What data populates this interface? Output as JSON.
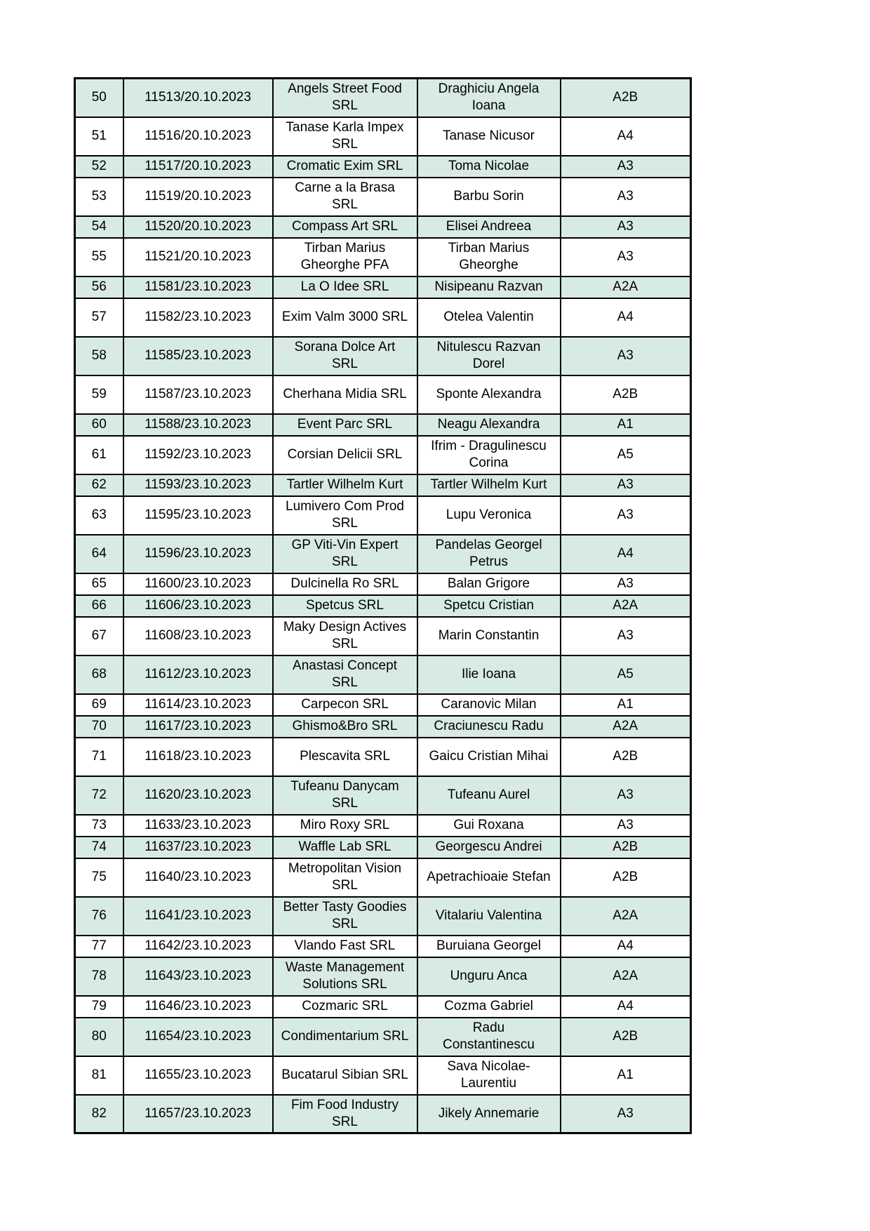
{
  "table": {
    "border_color": "#000000",
    "plain_fill": "#ffffff",
    "shaded_fill": "#d8ebe3",
    "column_names": [
      "cell-row-number",
      "cell-registration-number",
      "cell-company-name",
      "cell-representative-name",
      "cell-category-code"
    ],
    "rows": [
      {
        "no": "50",
        "reg": "11513/20.10.2023",
        "company": "Angels Street Food\nSRL",
        "person": "Draghiciu Angela\nIoana",
        "code": "A2B",
        "tall": true
      },
      {
        "no": "51",
        "reg": "11516/20.10.2023",
        "company": "Tanase Karla Impex\nSRL",
        "person": "Tanase Nicusor",
        "code": "A4",
        "tall": true
      },
      {
        "no": "52",
        "reg": "11517/20.10.2023",
        "company": "Cromatic Exim SRL",
        "person": "Toma Nicolae",
        "code": "A3",
        "tall": false
      },
      {
        "no": "53",
        "reg": "11519/20.10.2023",
        "company": "Carne a la Brasa\nSRL",
        "person": "Barbu Sorin",
        "code": "A3",
        "tall": true
      },
      {
        "no": "54",
        "reg": "11520/20.10.2023",
        "company": "Compass Art SRL",
        "person": "Elisei Andreea",
        "code": "A3",
        "tall": false
      },
      {
        "no": "55",
        "reg": "11521/20.10.2023",
        "company": "Tirban Marius\nGheorghe PFA",
        "person": "Tirban Marius\nGheorghe",
        "code": "A3",
        "tall": true
      },
      {
        "no": "56",
        "reg": "11581/23.10.2023",
        "company": "La O Idee SRL",
        "person": "Nisipeanu Razvan",
        "code": "A2A",
        "tall": false
      },
      {
        "no": "57",
        "reg": "11582/23.10.2023",
        "company": "Exim Valm 3000 SRL",
        "person": "Otelea Valentin",
        "code": "A4",
        "tall": true
      },
      {
        "no": "58",
        "reg": "11585/23.10.2023",
        "company": "Sorana Dolce Art\nSRL",
        "person": "Nitulescu Razvan\nDorel",
        "code": "A3",
        "tall": true
      },
      {
        "no": "59",
        "reg": "11587/23.10.2023",
        "company": "Cherhana Midia SRL",
        "person": "Sponte Alexandra",
        "code": "A2B",
        "tall": true
      },
      {
        "no": "60",
        "reg": "11588/23.10.2023",
        "company": "Event Parc SRL",
        "person": "Neagu Alexandra",
        "code": "A1",
        "tall": false
      },
      {
        "no": "61",
        "reg": "11592/23.10.2023",
        "company": "Corsian Delicii SRL",
        "person": "Ifrim - Dragulinescu\nCorina",
        "code": "A5",
        "tall": true
      },
      {
        "no": "62",
        "reg": "11593/23.10.2023",
        "company": "Tartler Wilhelm Kurt",
        "person": "Tartler Wilhelm Kurt",
        "code": "A3",
        "tall": false
      },
      {
        "no": "63",
        "reg": "11595/23.10.2023",
        "company": "Lumivero Com Prod\nSRL",
        "person": "Lupu Veronica",
        "code": "A3",
        "tall": true
      },
      {
        "no": "64",
        "reg": "11596/23.10.2023",
        "company": "GP Viti-Vin Expert\nSRL",
        "person": "Pandelas Georgel\nPetrus",
        "code": "A4",
        "tall": true
      },
      {
        "no": "65",
        "reg": "11600/23.10.2023",
        "company": "Dulcinella Ro SRL",
        "person": "Balan Grigore",
        "code": "A3",
        "tall": false
      },
      {
        "no": "66",
        "reg": "11606/23.10.2023",
        "company": "Spetcus SRL",
        "person": "Spetcu Cristian",
        "code": "A2A",
        "tall": false
      },
      {
        "no": "67",
        "reg": "11608/23.10.2023",
        "company": "Maky Design Actives\nSRL",
        "person": "Marin Constantin",
        "code": "A3",
        "tall": true
      },
      {
        "no": "68",
        "reg": "11612/23.10.2023",
        "company": "Anastasi Concept\nSRL",
        "person": "Ilie Ioana",
        "code": "A5",
        "tall": true
      },
      {
        "no": "69",
        "reg": "11614/23.10.2023",
        "company": "Carpecon SRL",
        "person": "Caranovic Milan",
        "code": "A1",
        "tall": false
      },
      {
        "no": "70",
        "reg": "11617/23.10.2023",
        "company": "Ghismo&Bro SRL",
        "person": "Craciunescu Radu",
        "code": "A2A",
        "tall": false
      },
      {
        "no": "71",
        "reg": "11618/23.10.2023",
        "company": "Plescavita SRL",
        "person": "Gaicu Cristian Mihai",
        "code": "A2B",
        "tall": true
      },
      {
        "no": "72",
        "reg": "11620/23.10.2023",
        "company": "Tufeanu Danycam\nSRL",
        "person": "Tufeanu Aurel",
        "code": "A3",
        "tall": true
      },
      {
        "no": "73",
        "reg": "11633/23.10.2023",
        "company": "Miro Roxy SRL",
        "person": "Gui Roxana",
        "code": "A3",
        "tall": false
      },
      {
        "no": "74",
        "reg": "11637/23.10.2023",
        "company": "Waffle Lab SRL",
        "person": "Georgescu Andrei",
        "code": "A2B",
        "tall": false
      },
      {
        "no": "75",
        "reg": "11640/23.10.2023",
        "company": "Metropolitan Vision\nSRL",
        "person": "Apetrachioaie Stefan",
        "code": "A2B",
        "tall": true
      },
      {
        "no": "76",
        "reg": "11641/23.10.2023",
        "company": "Better Tasty Goodies\nSRL",
        "person": "Vitalariu Valentina",
        "code": "A2A",
        "tall": true
      },
      {
        "no": "77",
        "reg": "11642/23.10.2023",
        "company": "Vlando Fast SRL",
        "person": "Buruiana Georgel",
        "code": "A4",
        "tall": false
      },
      {
        "no": "78",
        "reg": "11643/23.10.2023",
        "company": "Waste Management\nSolutions SRL",
        "person": "Unguru Anca",
        "code": "A2A",
        "tall": true
      },
      {
        "no": "79",
        "reg": "11646/23.10.2023",
        "company": "Cozmaric SRL",
        "person": "Cozma Gabriel",
        "code": "A4",
        "tall": false
      },
      {
        "no": "80",
        "reg": "11654/23.10.2023",
        "company": "Condimentarium SRL",
        "person": "Radu\nConstantinescu",
        "code": "A2B",
        "tall": true
      },
      {
        "no": "81",
        "reg": "11655/23.10.2023",
        "company": "Bucatarul Sibian SRL",
        "person": "Sava Nicolae-\nLaurentiu",
        "code": "A1",
        "tall": true
      },
      {
        "no": "82",
        "reg": "11657/23.10.2023",
        "company": "Fim Food Industry\nSRL",
        "person": "Jikely Annemarie",
        "code": "A3",
        "tall": true
      }
    ]
  }
}
